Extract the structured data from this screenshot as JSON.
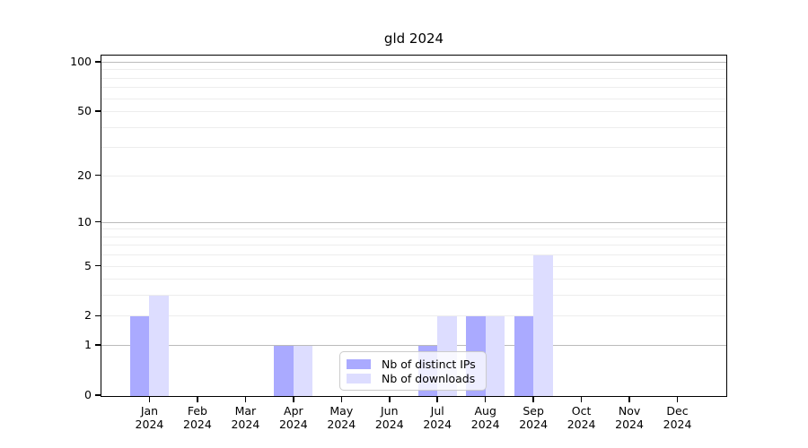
{
  "chart_data": {
    "type": "bar",
    "title": "gld 2024",
    "year_label": "2024",
    "categories": [
      "Jan",
      "Feb",
      "Mar",
      "Apr",
      "May",
      "Jun",
      "Jul",
      "Aug",
      "Sep",
      "Oct",
      "Nov",
      "Dec"
    ],
    "series": [
      {
        "name": "Nb of distinct IPs",
        "color": "#aaaaff",
        "values": [
          2,
          0,
          0,
          1,
          0,
          0,
          1,
          2,
          2,
          0,
          0,
          0
        ]
      },
      {
        "name": "Nb of downloads",
        "color": "#ddddff",
        "values": [
          3,
          0,
          0,
          1,
          0,
          0,
          2,
          2,
          6,
          0,
          0,
          0
        ]
      }
    ],
    "yscale": "log10(1+v)",
    "ylim": [
      0,
      113
    ],
    "ytick_labels": [
      "100",
      "50",
      "20",
      "10",
      "5",
      "2",
      "1",
      "0"
    ],
    "ytick_values": [
      100,
      50,
      20,
      10,
      5,
      2,
      1,
      0
    ],
    "grid_major_values": [
      1,
      10,
      100
    ],
    "grid_minor_values": [
      2,
      3,
      4,
      5,
      6,
      7,
      8,
      9,
      20,
      30,
      40,
      50,
      60,
      70,
      80,
      90
    ],
    "grid_on": true,
    "legend_position": "bottom-center"
  },
  "colors": {
    "background": "#ffffff",
    "axis": "#000000",
    "grid_major": "#bbbbbb",
    "grid_minor": "#ededed",
    "bar_distinct_ips": "#aaaaff",
    "bar_downloads": "#ddddff",
    "legend_border": "#cccccc"
  }
}
